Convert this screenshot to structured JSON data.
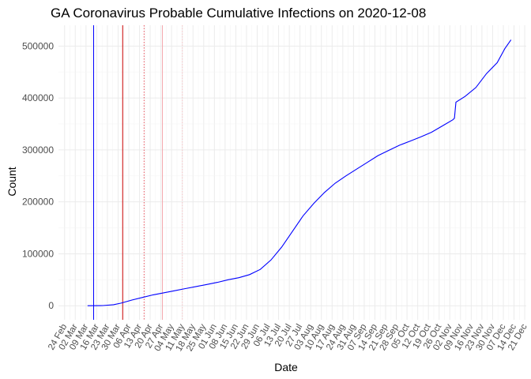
{
  "chart_data": {
    "type": "line",
    "title": "GA Coronavirus Probable Cumulative Infections on 2020-12-08",
    "xlabel": "Date",
    "ylabel": "Count",
    "x_range": [
      "2020-02-20",
      "2020-12-22"
    ],
    "ylim": [
      -27000,
      540000
    ],
    "y_ticks": [
      0,
      100000,
      200000,
      300000,
      400000,
      500000
    ],
    "y_tick_labels": [
      "0",
      "100000",
      "200000",
      "300000",
      "400000",
      "500000"
    ],
    "x_ticks": [
      "2020-02-24",
      "2020-03-02",
      "2020-03-09",
      "2020-03-16",
      "2020-03-23",
      "2020-03-30",
      "2020-04-06",
      "2020-04-13",
      "2020-04-20",
      "2020-04-27",
      "2020-05-04",
      "2020-05-11",
      "2020-05-18",
      "2020-05-25",
      "2020-06-01",
      "2020-06-08",
      "2020-06-15",
      "2020-06-22",
      "2020-06-29",
      "2020-07-06",
      "2020-07-13",
      "2020-07-20",
      "2020-07-27",
      "2020-08-03",
      "2020-08-10",
      "2020-08-17",
      "2020-08-24",
      "2020-08-31",
      "2020-09-07",
      "2020-09-14",
      "2020-09-21",
      "2020-09-28",
      "2020-10-05",
      "2020-10-12",
      "2020-10-19",
      "2020-10-26",
      "2020-11-02",
      "2020-11-09",
      "2020-11-16",
      "2020-11-23",
      "2020-11-30",
      "2020-12-07",
      "2020-12-14",
      "2020-12-21"
    ],
    "x_tick_labels": [
      "24 Feb",
      "02 Mar",
      "09 Mar",
      "16 Mar",
      "23 Mar",
      "30 Mar",
      "06 Apr",
      "13 Apr",
      "20 Apr",
      "27 Apr",
      "04 May",
      "11 May",
      "18 May",
      "25 May",
      "01 Jun",
      "08 Jun",
      "15 Jun",
      "22 Jun",
      "29 Jun",
      "06 Jul",
      "13 Jul",
      "20 Jul",
      "27 Jul",
      "03 Aug",
      "10 Aug",
      "17 Aug",
      "24 Aug",
      "31 Aug",
      "07 Sep",
      "14 Sep",
      "21 Sep",
      "28 Sep",
      "05 Oct",
      "12 Oct",
      "19 Oct",
      "26 Oct",
      "02 Nov",
      "09 Nov",
      "16 Nov",
      "23 Nov",
      "30 Nov",
      "07 Dec",
      "14 Dec",
      "21 Dec"
    ],
    "grid": true,
    "series": [
      {
        "color": "#0000ff",
        "points": [
          [
            "2020-03-10",
            0
          ],
          [
            "2020-03-20",
            400
          ],
          [
            "2020-03-27",
            2000
          ],
          [
            "2020-04-01",
            5000
          ],
          [
            "2020-04-08",
            11000
          ],
          [
            "2020-04-15",
            16000
          ],
          [
            "2020-04-22",
            21000
          ],
          [
            "2020-04-29",
            25000
          ],
          [
            "2020-05-06",
            29000
          ],
          [
            "2020-05-13",
            33000
          ],
          [
            "2020-05-20",
            37000
          ],
          [
            "2020-05-27",
            41000
          ],
          [
            "2020-06-03",
            45000
          ],
          [
            "2020-06-10",
            50000
          ],
          [
            "2020-06-17",
            54000
          ],
          [
            "2020-06-24",
            60000
          ],
          [
            "2020-07-01",
            70000
          ],
          [
            "2020-07-08",
            88000
          ],
          [
            "2020-07-15",
            113000
          ],
          [
            "2020-07-22",
            143000
          ],
          [
            "2020-07-29",
            173000
          ],
          [
            "2020-08-05",
            197000
          ],
          [
            "2020-08-12",
            218000
          ],
          [
            "2020-08-19",
            236000
          ],
          [
            "2020-08-26",
            250000
          ],
          [
            "2020-09-02",
            263000
          ],
          [
            "2020-09-09",
            276000
          ],
          [
            "2020-09-16",
            289000
          ],
          [
            "2020-09-23",
            299000
          ],
          [
            "2020-09-30",
            309000
          ],
          [
            "2020-10-07",
            317000
          ],
          [
            "2020-10-14",
            325000
          ],
          [
            "2020-10-21",
            334000
          ],
          [
            "2020-10-28",
            346000
          ],
          [
            "2020-11-04",
            358000
          ],
          [
            "2020-11-05",
            361000
          ],
          [
            "2020-11-06",
            392000
          ],
          [
            "2020-11-12",
            403000
          ],
          [
            "2020-11-19",
            420000
          ],
          [
            "2020-11-26",
            447000
          ],
          [
            "2020-12-03",
            468000
          ],
          [
            "2020-12-08",
            495000
          ],
          [
            "2020-12-12",
            512000
          ]
        ]
      }
    ],
    "vlines": [
      {
        "date": "2020-03-14",
        "color": "#0000ff",
        "style": "solid"
      },
      {
        "date": "2020-04-02",
        "color": "#cc0000",
        "style": "solid"
      },
      {
        "date": "2020-04-16",
        "color": "#e8505b",
        "style": "dotted"
      },
      {
        "date": "2020-04-28",
        "color": "#f4a6ab",
        "style": "solid"
      },
      {
        "date": "2020-05-11",
        "color": "#f8c5c8",
        "style": "dotted"
      }
    ]
  }
}
